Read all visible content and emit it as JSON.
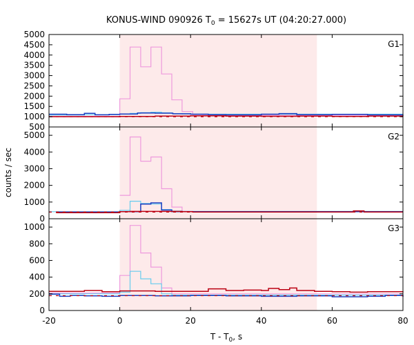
{
  "chart_data": {
    "type": "line",
    "title_main": "KONUS-WIND 090926 T",
    "title_sub": "0",
    "title_rest": " = 15627s UT (04:20:27.000)",
    "xlabel_main": "T - T",
    "xlabel_sub": "0",
    "xlabel_rest": ", s",
    "ylabel": "counts / sec",
    "xlim": [
      -20,
      80
    ],
    "x_ticks": [
      "-20",
      "0",
      "20",
      "40",
      "60",
      "80"
    ],
    "shaded_interval": [
      0,
      55.7
    ],
    "colors": {
      "shade": "#fdeaea",
      "total": "#ee99dd",
      "soft": "#66ccee",
      "medium": "#1a3dbf",
      "hard": "#bb0011",
      "background": "#bb0011"
    },
    "panels": [
      {
        "label": "G1",
        "ylim": [
          500,
          5000
        ],
        "y_ticks": [
          "500",
          "1000",
          "1500",
          "2000",
          "2500",
          "3000",
          "3500",
          "4000",
          "4500",
          "5000"
        ],
        "background_level": 1000,
        "series": [
          {
            "key": "total",
            "x": [
              -20,
              0,
              2.9,
              5.9,
              8.8,
              11.8,
              14.7,
              17.6,
              20.6,
              23.5,
              26.5,
              80
            ],
            "values": [
              1020,
              1870,
              4390,
              3430,
              4390,
              3080,
              1820,
              1250,
              1100,
              1080,
              1070,
              1070
            ]
          },
          {
            "key": "soft",
            "x": [
              -20,
              -10,
              0,
              2.9,
              5.9,
              8.8,
              11.8,
              14.7,
              17.6,
              20.6,
              80
            ],
            "values": [
              1080,
              1100,
              1120,
              1160,
              1200,
              1220,
              1190,
              1150,
              1130,
              1120,
              1120
            ]
          },
          {
            "key": "medium",
            "x": [
              -20,
              -15,
              -10,
              -7,
              -3,
              0,
              5,
              10,
              15,
              20,
              25,
              30,
              40,
              45,
              50,
              60,
              70,
              80
            ],
            "values": [
              1120,
              1100,
              1160,
              1090,
              1110,
              1130,
              1180,
              1170,
              1140,
              1120,
              1100,
              1090,
              1120,
              1150,
              1100,
              1110,
              1090,
              1100
            ]
          },
          {
            "key": "hard",
            "x": [
              -20,
              0,
              10,
              20,
              30,
              40,
              50,
              60,
              70,
              80
            ],
            "values": [
              1000,
              1010,
              1030,
              1040,
              1030,
              1020,
              1030,
              1010,
              1030,
              1020
            ]
          }
        ]
      },
      {
        "label": "G2",
        "ylim": [
          0,
          5500
        ],
        "y_ticks": [
          "0",
          "1000",
          "2000",
          "3000",
          "4000",
          "5000"
        ],
        "background_level": 400,
        "series": [
          {
            "key": "total",
            "x": [
              0,
              2.9,
              5.9,
              8.8,
              11.8,
              14.7,
              17.6,
              20.6,
              80
            ],
            "values": [
              1400,
              4900,
              3450,
              3700,
              1800,
              700,
              450,
              420,
              420
            ]
          },
          {
            "key": "soft",
            "x": [
              -20,
              0,
              2.9,
              5.9,
              8.8,
              11.8,
              14.7,
              17.6,
              80
            ],
            "values": [
              420,
              500,
              1050,
              920,
              880,
              550,
              460,
              440,
              440
            ]
          },
          {
            "key": "medium",
            "x": [
              -18,
              0,
              5.9,
              8.8,
              11.8,
              14.7,
              80
            ],
            "values": [
              400,
              420,
              880,
              950,
              520,
              420,
              420
            ]
          },
          {
            "key": "hard",
            "x": [
              -18,
              -14,
              0,
              2.9,
              17.6,
              20.6,
              63,
              66,
              69,
              80
            ],
            "values": [
              360,
              360,
              420,
              440,
              420,
              400,
              400,
              470,
              400,
              400
            ]
          }
        ]
      },
      {
        "label": "G3",
        "ylim": [
          0,
          1100
        ],
        "y_ticks": [
          "0",
          "200",
          "400",
          "600",
          "800",
          "1000"
        ],
        "background_level": 178,
        "series": [
          {
            "key": "total",
            "x": [
              -20,
              0,
              2.9,
              5.9,
              8.8,
              11.8,
              14.7,
              17.6,
              80
            ],
            "values": [
              210,
              420,
              1020,
              690,
              520,
              270,
              200,
              200,
              200
            ]
          },
          {
            "key": "soft",
            "x": [
              -20,
              0,
              2.9,
              5.9,
              8.8,
              11.8,
              14.7,
              80
            ],
            "values": [
              200,
              220,
              470,
              380,
              320,
              200,
              185,
              185
            ]
          },
          {
            "key": "medium",
            "x": [
              -20,
              -17,
              -14,
              -10,
              -5,
              0,
              10,
              20,
              30,
              40,
              50,
              60,
              70,
              75,
              80
            ],
            "values": [
              195,
              170,
              180,
              175,
              170,
              180,
              175,
              180,
              175,
              170,
              175,
              165,
              170,
              180,
              165
            ]
          },
          {
            "key": "hard",
            "x": [
              -20,
              -10,
              -5,
              0,
              10,
              20,
              25,
              30,
              35,
              40,
              42,
              45,
              48,
              50,
              55,
              60,
              65,
              70,
              80
            ],
            "values": [
              230,
              240,
              225,
              235,
              230,
              230,
              260,
              240,
              245,
              240,
              265,
              250,
              270,
              240,
              230,
              225,
              220,
              225,
              230
            ]
          }
        ]
      }
    ]
  }
}
